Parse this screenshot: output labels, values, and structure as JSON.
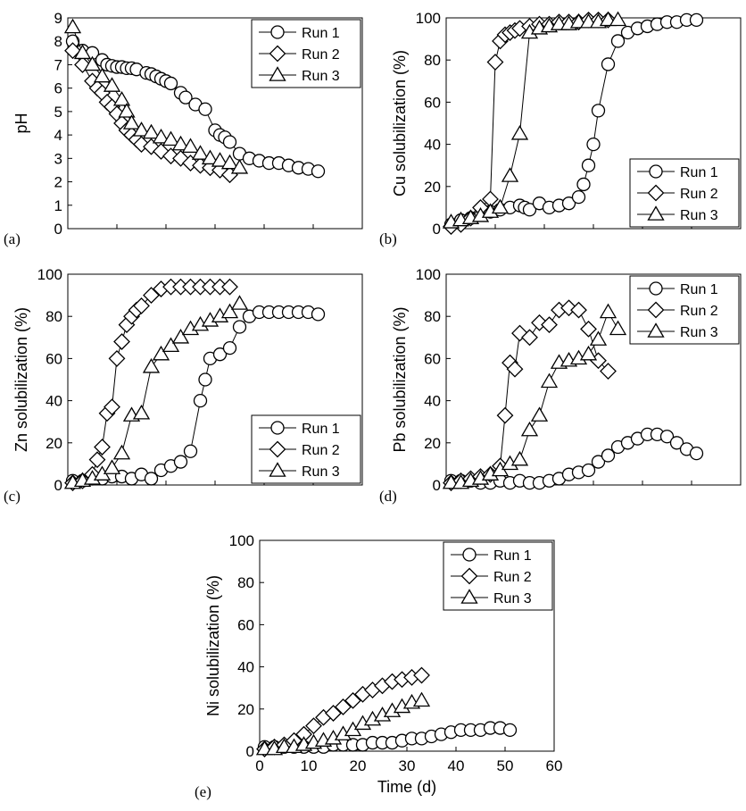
{
  "legend_labels": [
    "Run 1",
    "Run 2",
    "Run 3"
  ],
  "chart_data": [
    {
      "id": "a",
      "tag": "(a)",
      "type": "scatter",
      "ylabel": "pH",
      "ylim": [
        0,
        9
      ],
      "yticks": [
        0,
        1,
        2,
        3,
        4,
        5,
        6,
        7,
        8,
        9
      ],
      "xlim": [
        0,
        60
      ],
      "grid": false,
      "legend_position": "top-right",
      "series": [
        {
          "name": "Run 1",
          "marker": "circle",
          "x": [
            1,
            3,
            5,
            7,
            8,
            9,
            10,
            11,
            12,
            13,
            14,
            16,
            17,
            18,
            19,
            20,
            21,
            23,
            24,
            26,
            28,
            30,
            31,
            32,
            33,
            35,
            37,
            39,
            41,
            43,
            45,
            47,
            49,
            51
          ],
          "y": [
            8.0,
            7.6,
            7.5,
            7.2,
            7.0,
            6.95,
            6.9,
            6.9,
            6.85,
            6.85,
            6.8,
            6.65,
            6.6,
            6.5,
            6.4,
            6.3,
            6.2,
            5.8,
            5.6,
            5.3,
            5.1,
            4.2,
            4.0,
            3.9,
            3.7,
            3.2,
            3.0,
            2.9,
            2.8,
            2.8,
            2.7,
            2.6,
            2.55,
            2.45
          ]
        },
        {
          "name": "Run 2",
          "marker": "diamond",
          "x": [
            1,
            3,
            5,
            6,
            7,
            8,
            9,
            10,
            11,
            12,
            13,
            14,
            15,
            17,
            19,
            21,
            23,
            25,
            27,
            29,
            31,
            33
          ],
          "y": [
            7.6,
            7.0,
            6.3,
            6.0,
            5.8,
            5.4,
            5.2,
            4.9,
            4.5,
            4.2,
            4.0,
            3.8,
            3.6,
            3.5,
            3.3,
            3.1,
            3.0,
            2.8,
            2.7,
            2.6,
            2.5,
            2.3
          ]
        },
        {
          "name": "Run 3",
          "marker": "triangle",
          "x": [
            1,
            3,
            5,
            7,
            9,
            11,
            12,
            13,
            15,
            17,
            19,
            21,
            23,
            25,
            27,
            29,
            31,
            33,
            35
          ],
          "y": [
            8.6,
            7.5,
            7.0,
            6.5,
            6.1,
            5.5,
            5.0,
            4.5,
            4.2,
            4.1,
            3.9,
            3.8,
            3.6,
            3.5,
            3.2,
            3.0,
            2.9,
            2.8,
            2.6
          ]
        }
      ]
    },
    {
      "id": "b",
      "tag": "(b)",
      "type": "scatter",
      "ylabel": "Cu solubilization (%)",
      "ylim": [
        0,
        100
      ],
      "yticks": [
        0,
        20,
        40,
        60,
        80,
        100
      ],
      "xlim": [
        0,
        60
      ],
      "grid": false,
      "legend_position": "bottom-right",
      "series": [
        {
          "name": "Run 1",
          "marker": "circle",
          "x": [
            1,
            3,
            5,
            7,
            9,
            11,
            13,
            15,
            16,
            17,
            19,
            21,
            23,
            25,
            27,
            28,
            29,
            30,
            31,
            33,
            35,
            37,
            39,
            41,
            43,
            45,
            47,
            49,
            51
          ],
          "y": [
            2,
            4,
            5,
            7,
            8,
            9,
            10,
            11,
            10,
            9,
            12,
            10,
            11,
            12,
            15,
            21,
            30,
            40,
            56,
            78,
            89,
            93,
            95,
            96,
            97,
            98,
            98,
            99,
            99
          ]
        },
        {
          "name": "Run 2",
          "marker": "diamond",
          "x": [
            1,
            3,
            5,
            7,
            9,
            10,
            11,
            12,
            13,
            14,
            15,
            17,
            19,
            21,
            23,
            25,
            27,
            29,
            31,
            33
          ],
          "y": [
            1,
            2,
            5,
            10,
            14,
            79,
            89,
            92,
            93,
            94,
            95,
            96,
            97,
            97,
            98,
            98,
            98,
            99,
            99,
            99
          ]
        },
        {
          "name": "Run 3",
          "marker": "triangle",
          "x": [
            1,
            3,
            5,
            7,
            9,
            11,
            13,
            15,
            17,
            19,
            21,
            23,
            25,
            27,
            29,
            31,
            33,
            35
          ],
          "y": [
            3,
            4,
            5,
            6,
            8,
            10,
            25,
            45,
            93,
            95,
            96,
            97,
            97,
            98,
            98,
            98,
            99,
            99
          ]
        }
      ]
    },
    {
      "id": "c",
      "tag": "(c)",
      "type": "scatter",
      "ylabel": "Zn solubilization (%)",
      "ylim": [
        0,
        100
      ],
      "yticks": [
        0,
        20,
        40,
        60,
        80,
        100
      ],
      "xlim": [
        0,
        60
      ],
      "grid": false,
      "legend_position": "bottom-right",
      "series": [
        {
          "name": "Run 1",
          "marker": "circle",
          "x": [
            1,
            3,
            5,
            7,
            9,
            11,
            13,
            15,
            17,
            19,
            21,
            23,
            25,
            27,
            28,
            29,
            31,
            33,
            35,
            37,
            39,
            41,
            43,
            45,
            47,
            49,
            51
          ],
          "y": [
            2,
            2,
            3,
            3,
            4,
            4,
            3,
            5,
            3,
            7,
            9,
            11,
            16,
            40,
            50,
            60,
            62,
            65,
            75,
            80,
            82,
            82,
            82,
            82,
            82,
            82,
            81
          ]
        },
        {
          "name": "Run 2",
          "marker": "diamond",
          "x": [
            1,
            3,
            5,
            6,
            7,
            8,
            9,
            10,
            11,
            12,
            13,
            14,
            15,
            17,
            19,
            21,
            23,
            25,
            27,
            29,
            31,
            33
          ],
          "y": [
            1,
            2,
            5,
            12,
            18,
            34,
            37,
            60,
            68,
            76,
            80,
            83,
            85,
            90,
            93,
            94,
            94,
            94,
            94,
            94,
            94,
            94
          ]
        },
        {
          "name": "Run 3",
          "marker": "triangle",
          "x": [
            1,
            3,
            5,
            7,
            9,
            11,
            13,
            15,
            17,
            19,
            21,
            23,
            25,
            27,
            29,
            31,
            33,
            35
          ],
          "y": [
            1,
            2,
            3,
            5,
            8,
            15,
            33,
            34,
            56,
            62,
            66,
            70,
            74,
            76,
            78,
            80,
            82,
            86
          ]
        }
      ]
    },
    {
      "id": "d",
      "tag": "(d)",
      "type": "scatter",
      "ylabel": "Pb solubilization (%)",
      "ylim": [
        0,
        100
      ],
      "yticks": [
        0,
        20,
        40,
        60,
        80,
        100
      ],
      "xlim": [
        0,
        60
      ],
      "grid": false,
      "legend_position": "top-right",
      "series": [
        {
          "name": "Run 1",
          "marker": "circle",
          "x": [
            1,
            3,
            5,
            7,
            9,
            11,
            13,
            15,
            17,
            19,
            21,
            23,
            25,
            27,
            29,
            31,
            33,
            35,
            37,
            39,
            41,
            43,
            45,
            47,
            49,
            51
          ],
          "y": [
            2,
            2,
            2,
            1,
            1,
            2,
            1,
            2,
            1,
            1,
            2,
            3,
            5,
            6,
            7,
            11,
            14,
            18,
            20,
            22,
            24,
            24,
            23,
            20,
            17,
            15
          ]
        },
        {
          "name": "Run 2",
          "marker": "diamond",
          "x": [
            1,
            3,
            5,
            7,
            9,
            11,
            12,
            13,
            14,
            15,
            17,
            19,
            21,
            23,
            25,
            27,
            29,
            31,
            33
          ],
          "y": [
            1,
            2,
            3,
            4,
            5,
            9,
            33,
            58,
            55,
            72,
            70,
            77,
            76,
            83,
            84,
            83,
            74,
            59,
            54
          ]
        },
        {
          "name": "Run 3",
          "marker": "triangle",
          "x": [
            1,
            3,
            5,
            7,
            9,
            11,
            13,
            15,
            17,
            19,
            21,
            23,
            25,
            27,
            29,
            31,
            33,
            35
          ],
          "y": [
            1,
            1,
            2,
            3,
            5,
            7,
            10,
            12,
            26,
            33,
            49,
            58,
            59,
            60,
            62,
            69,
            82,
            74
          ]
        }
      ]
    },
    {
      "id": "e",
      "tag": "(e)",
      "type": "scatter",
      "ylabel": "Ni solubilization (%)",
      "xlabel": "Time (d)",
      "ylim": [
        0,
        100
      ],
      "yticks": [
        0,
        20,
        40,
        60,
        80,
        100
      ],
      "xlim": [
        0,
        60
      ],
      "xticks": [
        0,
        10,
        20,
        30,
        40,
        50,
        60
      ],
      "grid": false,
      "legend_position": "top-right",
      "series": [
        {
          "name": "Run 1",
          "marker": "circle",
          "x": [
            1,
            3,
            5,
            7,
            9,
            11,
            13,
            15,
            17,
            19,
            21,
            23,
            25,
            27,
            29,
            31,
            33,
            35,
            37,
            39,
            41,
            43,
            45,
            47,
            49,
            51
          ],
          "y": [
            2,
            2,
            2,
            2,
            2,
            2,
            2,
            3,
            3,
            3,
            3,
            4,
            4,
            4,
            5,
            6,
            6,
            7,
            8,
            9,
            10,
            10,
            10,
            11,
            11,
            10
          ]
        },
        {
          "name": "Run 2",
          "marker": "diamond",
          "x": [
            1,
            3,
            5,
            7,
            9,
            11,
            13,
            15,
            17,
            19,
            21,
            23,
            25,
            27,
            29,
            31,
            33
          ],
          "y": [
            1,
            2,
            3,
            5,
            8,
            12,
            16,
            18,
            21,
            24,
            27,
            29,
            31,
            33,
            34,
            35,
            36
          ]
        },
        {
          "name": "Run 3",
          "marker": "triangle",
          "x": [
            1,
            3,
            5,
            7,
            9,
            11,
            13,
            15,
            17,
            19,
            21,
            23,
            25,
            27,
            29,
            31,
            33
          ],
          "y": [
            1,
            1,
            2,
            2,
            3,
            4,
            5,
            6,
            8,
            10,
            13,
            15,
            17,
            19,
            21,
            23,
            24
          ]
        }
      ]
    }
  ]
}
